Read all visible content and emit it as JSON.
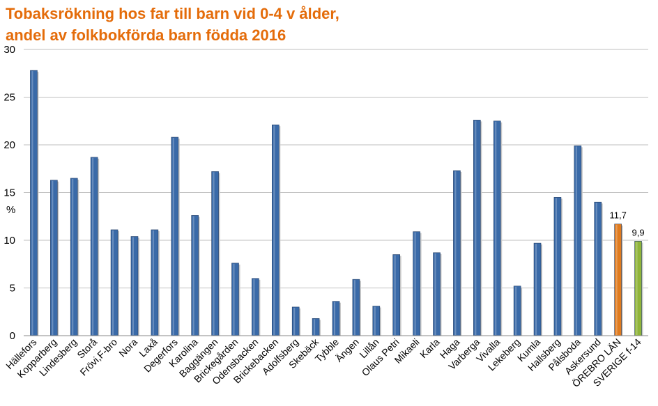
{
  "chart_data": {
    "type": "bar",
    "title_lines": [
      "Tobaksrökning hos far till barn vid 0-4 v ålder,",
      "andel av folkbokförda barn födda 2016"
    ],
    "ylabel": "%",
    "ylim": [
      0,
      30
    ],
    "yticks": [
      "0",
      "5",
      "10",
      "15",
      "20",
      "25",
      "30"
    ],
    "grid": true,
    "categories": [
      "Hällefors",
      "Kopparberg",
      "Lindesberg",
      "Storå",
      "Frövi,F-bro",
      "Nora",
      "Laxå",
      "Degerfors",
      "Karolina",
      "Baggängen",
      "Brickegården",
      "Odensbacken",
      "Brickebacken",
      "Adolfsberg",
      "Skebäck",
      "Tybble",
      "Ängen",
      "Lillån",
      "Olaus Petri",
      "Mikaeli",
      "Karla",
      "Haga",
      "Varberga",
      "Vivalla",
      "Lekeberg",
      "Kumla",
      "Hallsberg",
      "Pålsboda",
      "Askersund",
      "ÖREBRO LÄN",
      "SVERIGE f-14"
    ],
    "values": [
      27.8,
      16.3,
      16.5,
      18.7,
      11.1,
      10.4,
      11.1,
      20.8,
      12.6,
      17.2,
      7.6,
      6.0,
      22.1,
      3.0,
      1.8,
      3.6,
      5.9,
      3.1,
      8.5,
      10.9,
      8.7,
      17.3,
      22.6,
      22.5,
      5.2,
      9.7,
      14.5,
      19.9,
      14.0,
      11.7,
      9.9
    ],
    "bar_colors": [
      "#3a6aa8",
      "#3a6aa8",
      "#3a6aa8",
      "#3a6aa8",
      "#3a6aa8",
      "#3a6aa8",
      "#3a6aa8",
      "#3a6aa8",
      "#3a6aa8",
      "#3a6aa8",
      "#3a6aa8",
      "#3a6aa8",
      "#3a6aa8",
      "#3a6aa8",
      "#3a6aa8",
      "#3a6aa8",
      "#3a6aa8",
      "#3a6aa8",
      "#3a6aa8",
      "#3a6aa8",
      "#3a6aa8",
      "#3a6aa8",
      "#3a6aa8",
      "#3a6aa8",
      "#3a6aa8",
      "#3a6aa8",
      "#3a6aa8",
      "#3a6aa8",
      "#3a6aa8",
      "#e07b1f",
      "#8fb43a"
    ],
    "data_labels": {
      "29": "11,7",
      "30": "9,9"
    }
  }
}
